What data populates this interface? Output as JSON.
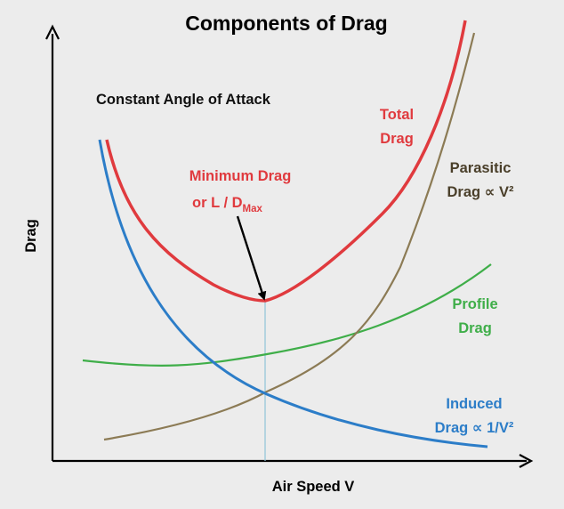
{
  "chart_data": {
    "type": "line",
    "title": "Components of Drag",
    "xlabel": "Air Speed  V",
    "ylabel": "Drag",
    "annotations": {
      "condition": "Constant Angle of Attack",
      "minimum_line1": "Minimum Drag",
      "minimum_line2_prefix": "or  L / D",
      "minimum_subscript": "Max"
    },
    "grid": false,
    "legend": "none",
    "series": [
      {
        "name": "Total Drag",
        "label_lines": [
          "Total",
          "Drag"
        ],
        "color": "#e03a3e",
        "shape": "U-shaped curve with minimum at the speed where induced and parasitic drag are equal"
      },
      {
        "name": "Parasitic Drag ∝ V²",
        "label_lines": [
          "Parasitic",
          "Drag ∝ V²"
        ],
        "color": "#8c7b55",
        "shape": "increasing, proportional to V squared"
      },
      {
        "name": "Profile Drag",
        "label_lines": [
          "Profile",
          "Drag"
        ],
        "color": "#3fae49",
        "shape": "shallow curve rising with speed"
      },
      {
        "name": "Induced Drag ∝ 1/V²",
        "label_lines": [
          "Induced",
          "Drag ∝ 1/V²"
        ],
        "color": "#2c7dc8",
        "shape": "decreasing, proportional to 1 / V squared"
      }
    ],
    "colors": {
      "axis": "#000000",
      "arrow": "#000000",
      "guide": "#8fc4d8",
      "background": "#ececec"
    }
  }
}
